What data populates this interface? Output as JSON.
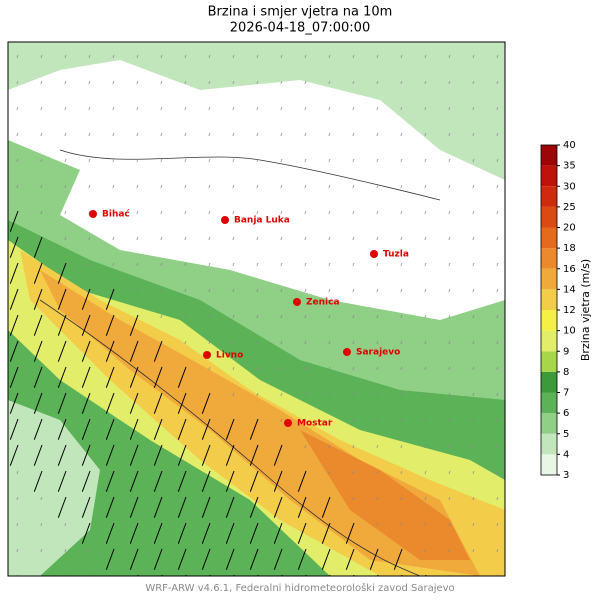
{
  "header": {
    "title": "Brzina i smjer vjetra na 10m",
    "subtitle": "2026-04-18_07:00:00"
  },
  "cities": [
    {
      "name": "Bihać"
    },
    {
      "name": "Banja Luka"
    },
    {
      "name": "Tuzla"
    },
    {
      "name": "Zenica"
    },
    {
      "name": "Sarajevo"
    },
    {
      "name": "Livno"
    },
    {
      "name": "Mostar"
    }
  ],
  "colorbar": {
    "label": "Brzina vjetra (m/s)",
    "ticks": [
      3,
      4,
      5,
      6,
      7,
      8,
      9,
      10,
      12,
      14,
      16,
      18,
      20,
      25,
      30,
      35,
      40
    ],
    "colors": [
      "#e8f6e6",
      "#c2e6bc",
      "#8fcf86",
      "#5cb257",
      "#3c9a3a",
      "#a6d64a",
      "#e2ee6a",
      "#f6f046",
      "#f3cc4a",
      "#f0aa3c",
      "#eb8a2c",
      "#e46a1e",
      "#dc4a14",
      "#d02a0e",
      "#c01208",
      "#9c0606"
    ]
  },
  "footer": "WRF-ARW v4.6.1, Federalni hidrometeorološki zavod Sarajevo"
}
